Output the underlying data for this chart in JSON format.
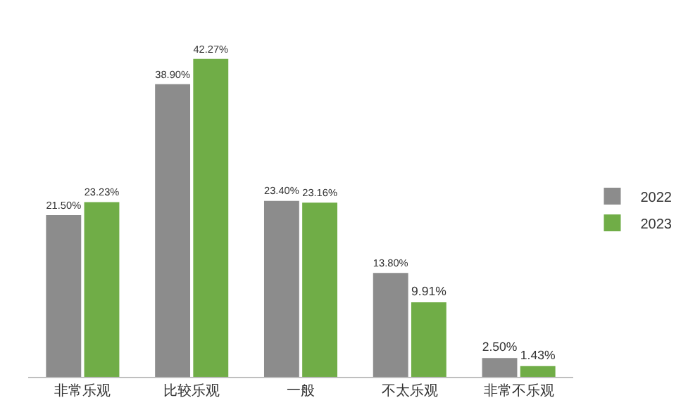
{
  "chart_data": {
    "type": "bar",
    "categories": [
      "非常乐观",
      "比较乐观",
      "一般",
      "不太乐观",
      "非常不乐观"
    ],
    "series": [
      {
        "name": "2022",
        "color": "#8c8c8c",
        "values": [
          21.5,
          38.9,
          23.4,
          13.8,
          2.5
        ],
        "value_labels": [
          "21.50%",
          "38.90%",
          "23.40%",
          "13.80%",
          "2.50%"
        ]
      },
      {
        "name": "2023",
        "color": "#70ad47",
        "values": [
          23.23,
          42.27,
          23.16,
          9.91,
          1.43
        ],
        "value_labels": [
          "23.23%",
          "42.27%",
          "23.16%",
          "9.91%",
          "1.43%"
        ]
      }
    ],
    "legend": "right",
    "grid": false,
    "tick_labels": "x"
  }
}
